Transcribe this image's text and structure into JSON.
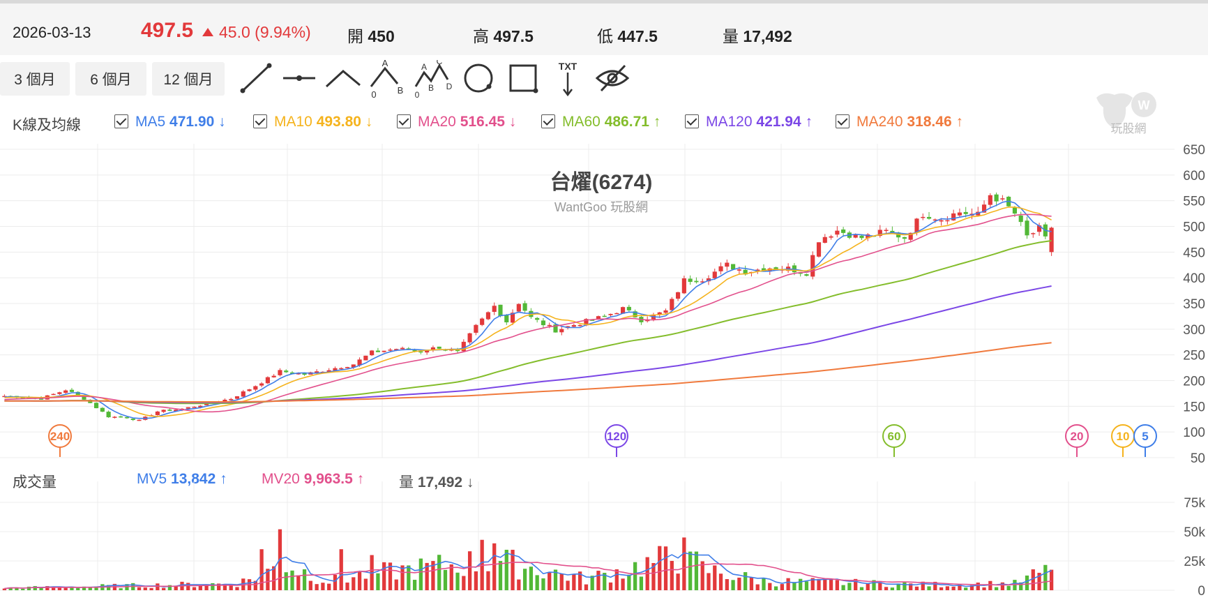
{
  "quote": {
    "date": "2026-03-13",
    "price": "497.5",
    "change": "45.0 (9.94%)",
    "open_label": "開",
    "open": "450",
    "high_label": "高",
    "high": "497.5",
    "low_label": "低",
    "low": "447.5",
    "volume_label": "量",
    "volume": "17,492"
  },
  "toolbar": {
    "ranges": [
      "3 個月",
      "6 個月",
      "12 個月"
    ],
    "icons": [
      "line-segment-icon",
      "horizontal-line-icon",
      "angle-line-icon",
      "abc-wave-icon",
      "abcd-wave-icon",
      "circle-icon",
      "rectangle-icon",
      "text-annotation-icon",
      "hide-drawings-icon"
    ],
    "abc_letters": [
      "A",
      "B",
      "0",
      "C",
      "D"
    ],
    "txt_label": "TXT"
  },
  "kline_legend": {
    "title": "K線及均線",
    "items": [
      {
        "name": "MA5",
        "value": "471.90",
        "dir": "↓",
        "color": "#3f7ee8"
      },
      {
        "name": "MA10",
        "value": "493.80",
        "dir": "↓",
        "color": "#f5b31d"
      },
      {
        "name": "MA20",
        "value": "516.45",
        "dir": "↓",
        "color": "#e2508c"
      },
      {
        "name": "MA60",
        "value": "486.71",
        "dir": "↑",
        "color": "#84bd2c"
      },
      {
        "name": "MA120",
        "value": "421.94",
        "dir": "↑",
        "color": "#7b47e6"
      },
      {
        "name": "MA240",
        "value": "318.46",
        "dir": "↑",
        "color": "#f07a3d"
      }
    ]
  },
  "volume_legend": {
    "title": "成交量",
    "mv5_label": "MV5",
    "mv5_value": "13,842",
    "mv5_dir": "↑",
    "mv5_color": "#3f7ee8",
    "mv20_label": "MV20",
    "mv20_value": "9,963.5",
    "mv20_dir": "↑",
    "mv20_color": "#e2508c",
    "vol_label": "量",
    "vol_value": "17,492",
    "vol_dir": "↓"
  },
  "watermark": "玩股網",
  "colors": {
    "up": "#e2393b",
    "down": "#52b837",
    "grid": "#ececec"
  },
  "chart_data": {
    "type": "candlestick",
    "title": "台燿(6274)",
    "subtitle": "WantGoo 玩股網",
    "price_axis": {
      "ticks": [
        650,
        600,
        550,
        500,
        450,
        400,
        350,
        300,
        250,
        200,
        150,
        100,
        50
      ],
      "range": [
        50,
        650
      ]
    },
    "volume_axis": {
      "tick_labels": [
        "75k",
        "50k",
        "25k",
        "0"
      ],
      "range": [
        0,
        75000
      ]
    },
    "ma_markers": [
      {
        "label": "240",
        "color": "#f07a3d"
      },
      {
        "label": "120",
        "color": "#7b47e6"
      },
      {
        "label": "60",
        "color": "#84bd2c"
      },
      {
        "label": "20",
        "color": "#e2508c"
      },
      {
        "label": "10",
        "color": "#f5b31d"
      },
      {
        "label": "5",
        "color": "#3f7ee8"
      }
    ],
    "close_keypoints": [
      [
        0,
        170
      ],
      [
        6,
        165
      ],
      [
        10,
        182
      ],
      [
        13,
        165
      ],
      [
        17,
        130
      ],
      [
        20,
        128
      ],
      [
        22,
        122
      ],
      [
        25,
        140
      ],
      [
        29,
        145
      ],
      [
        33,
        155
      ],
      [
        37,
        165
      ],
      [
        41,
        190
      ],
      [
        45,
        218
      ],
      [
        49,
        212
      ],
      [
        53,
        222
      ],
      [
        57,
        232
      ],
      [
        60,
        255
      ],
      [
        64,
        262
      ],
      [
        68,
        258
      ],
      [
        71,
        265
      ],
      [
        74,
        255
      ],
      [
        77,
        305
      ],
      [
        80,
        345
      ],
      [
        82,
        315
      ],
      [
        84,
        352
      ],
      [
        86,
        322
      ],
      [
        90,
        298
      ],
      [
        94,
        312
      ],
      [
        98,
        325
      ],
      [
        101,
        340
      ],
      [
        104,
        318
      ],
      [
        108,
        335
      ],
      [
        111,
        395
      ],
      [
        114,
        398
      ],
      [
        118,
        425
      ],
      [
        121,
        412
      ],
      [
        125,
        420
      ],
      [
        128,
        418
      ],
      [
        131,
        410
      ],
      [
        133,
        475
      ],
      [
        136,
        492
      ],
      [
        140,
        478
      ],
      [
        144,
        490
      ],
      [
        147,
        478
      ],
      [
        150,
        525
      ],
      [
        153,
        515
      ],
      [
        156,
        528
      ],
      [
        159,
        522
      ],
      [
        161,
        562
      ],
      [
        163,
        548
      ],
      [
        165,
        525
      ],
      [
        167,
        480
      ],
      [
        169,
        495
      ],
      [
        170,
        475
      ],
      [
        171,
        497
      ]
    ],
    "volume_keypoints": [
      [
        0,
        2000
      ],
      [
        20,
        4000
      ],
      [
        38,
        6000
      ],
      [
        43,
        16000
      ],
      [
        45,
        25000
      ],
      [
        53,
        8000
      ],
      [
        60,
        15000
      ],
      [
        77,
        25000
      ],
      [
        80,
        27000
      ],
      [
        95,
        10000
      ],
      [
        110,
        30000
      ],
      [
        113,
        20000
      ],
      [
        124,
        8000
      ],
      [
        135,
        7000
      ],
      [
        150,
        5000
      ],
      [
        165,
        6000
      ],
      [
        169,
        15000
      ],
      [
        171,
        17492
      ]
    ],
    "volume_spikes": [
      [
        42,
        35000
      ],
      [
        45,
        52000
      ],
      [
        55,
        35000
      ],
      [
        60,
        30000
      ],
      [
        78,
        43000
      ],
      [
        80,
        40000
      ],
      [
        111,
        45000
      ],
      [
        113,
        33000
      ]
    ]
  }
}
